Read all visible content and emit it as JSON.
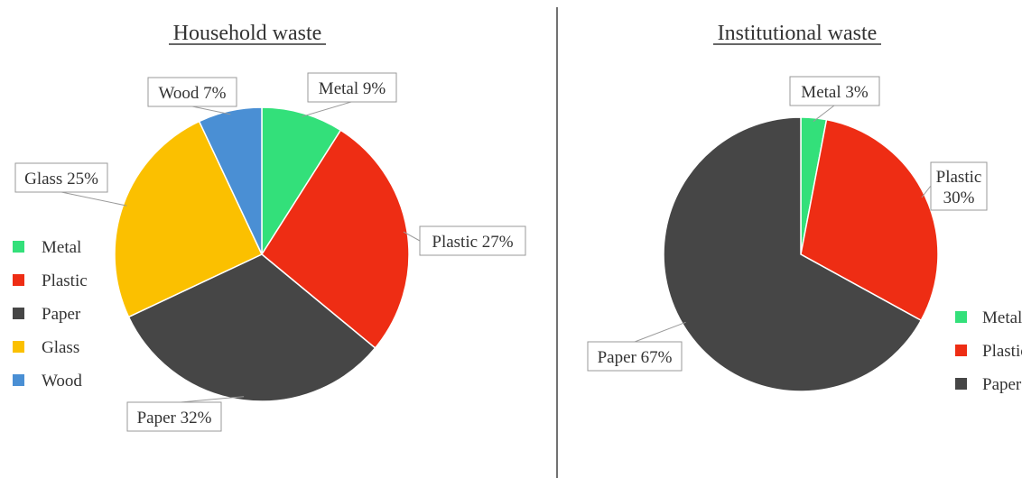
{
  "colors": {
    "Metal": "#33e07a",
    "Plastic": "#ee2d14",
    "Paper": "#464646",
    "Glass": "#fbc000",
    "Wood": "#4a8fd4"
  },
  "chart_data": [
    {
      "type": "pie",
      "title": "Household waste",
      "categories": [
        "Metal",
        "Plastic",
        "Paper",
        "Glass",
        "Wood"
      ],
      "values": [
        9,
        27,
        32,
        25,
        7
      ],
      "data_labels": [
        "Metal 9%",
        "Plastic 27%",
        "Paper 32%",
        "Glass 25%",
        "Wood 7%"
      ],
      "unit": "%",
      "legend_position": "left"
    },
    {
      "type": "pie",
      "title": "Institutional waste",
      "categories": [
        "Metal",
        "Plastic",
        "Paper"
      ],
      "values": [
        3,
        30,
        67
      ],
      "data_labels": [
        "Metal 3%",
        "Plastic 30%",
        "Paper 67%"
      ],
      "unit": "%",
      "legend_position": "bottom-right"
    }
  ]
}
